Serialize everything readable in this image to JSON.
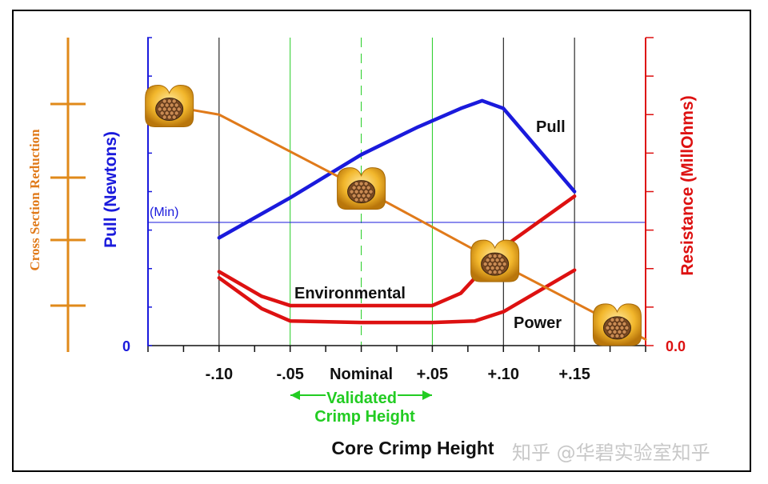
{
  "chart_data": {
    "type": "line",
    "title": "",
    "xlabel": "Core Crimp Height",
    "ylabel_left": "Pull (Newtons)",
    "ylabel_right": "Resistance (MillOhms)",
    "ylabel_far_left": "Cross Section Reduction",
    "x_ticks": [
      "-.10",
      "-.05",
      "Nominal",
      "+.05",
      "+.10",
      "+.15"
    ],
    "x_tick_values": [
      -0.1,
      -0.05,
      0.0,
      0.05,
      0.1,
      0.15
    ],
    "xlim": [
      -0.15,
      0.2
    ],
    "y_left_zero_label": "0",
    "y_right_zero_label": "0.0",
    "ylim": [
      0,
      100
    ],
    "min_label": "(Min)",
    "min_value": 40,
    "validated_label_line1": "Validated",
    "validated_label_line2": "Crimp Height",
    "validated_range": [
      -0.05,
      0.05
    ],
    "grid": true,
    "series": [
      {
        "name": "Pull",
        "color": "#1a1adc",
        "axis": "left",
        "points": [
          [
            -0.1,
            35
          ],
          [
            -0.05,
            48
          ],
          [
            0.0,
            62
          ],
          [
            0.04,
            71
          ],
          [
            0.07,
            77
          ],
          [
            0.085,
            79.5
          ],
          [
            0.1,
            77
          ],
          [
            0.15,
            50
          ]
        ]
      },
      {
        "name": "Environmental",
        "color": "#dd1111",
        "axis": "right",
        "points": [
          [
            -0.1,
            24
          ],
          [
            -0.07,
            16
          ],
          [
            -0.05,
            13
          ],
          [
            0.0,
            13
          ],
          [
            0.05,
            13
          ],
          [
            0.07,
            17
          ],
          [
            0.1,
            32
          ],
          [
            0.15,
            48.5
          ]
        ]
      },
      {
        "name": "Power",
        "color": "#dd1111",
        "axis": "right",
        "points": [
          [
            -0.1,
            22
          ],
          [
            -0.07,
            12
          ],
          [
            -0.05,
            8
          ],
          [
            0.0,
            7.5
          ],
          [
            0.05,
            7.5
          ],
          [
            0.08,
            8
          ],
          [
            0.1,
            11
          ],
          [
            0.15,
            24.5
          ]
        ]
      },
      {
        "name": "Cross Section Reduction",
        "color": "#e07a1a",
        "axis": "far-left",
        "points": [
          [
            -0.15,
            79
          ],
          [
            -0.1,
            75
          ],
          [
            0.0,
            51
          ],
          [
            0.1,
            26
          ],
          [
            0.2,
            2
          ]
        ]
      }
    ],
    "annotations": [
      {
        "text": "Pull",
        "x": 0.145,
        "y": 70
      },
      {
        "text": "Environmental",
        "x": -0.02,
        "y": 17
      },
      {
        "text": "Power",
        "x": 0.11,
        "y": 8
      }
    ]
  },
  "watermark": "知乎 @华碧实验室知乎"
}
